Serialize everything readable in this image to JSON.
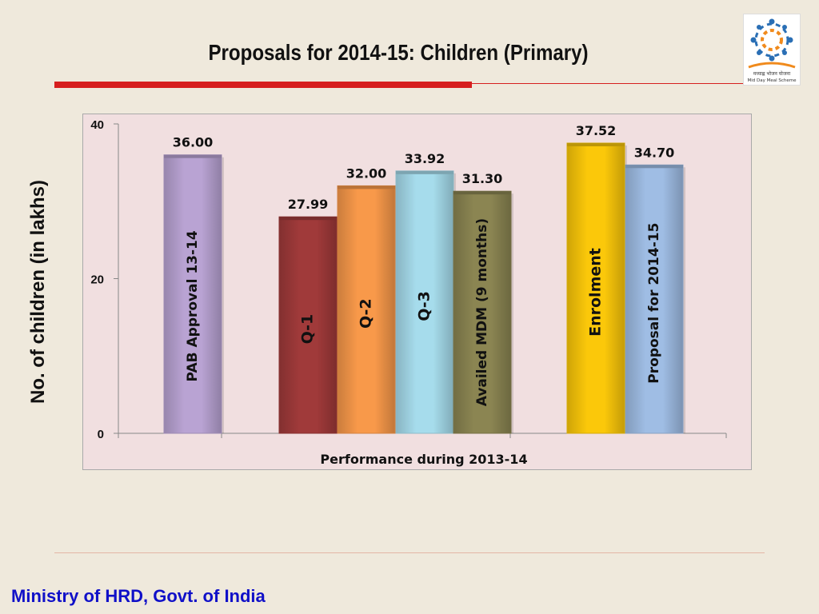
{
  "slide": {
    "title": "Proposals for 2014-15: Children (Primary)",
    "footer": "Ministry of HRD, Govt. of India"
  },
  "logo": {
    "caption": "मध्याह्न भोजन योजना",
    "subcaption": "Mid Day Meal Scheme"
  },
  "chart_data": {
    "type": "bar",
    "title": "Proposals for 2014-15: Children (Primary)",
    "xlabel": "Performance during 2013-14",
    "ylabel": "No. of children (in lakhs)",
    "ylim": [
      0,
      40
    ],
    "yticks": [
      "0",
      "20",
      "40"
    ],
    "grid": false,
    "legend": "none",
    "categories": [
      "PAB Approval 13-14",
      "Q-1",
      "Q-2",
      "Q-3",
      "Availed MDM (9 months)",
      "Enrolment",
      "Proposal for 2014-15"
    ],
    "values": [
      36.0,
      27.99,
      32.0,
      33.92,
      31.3,
      37.52,
      34.7
    ],
    "data_labels": [
      "36.00",
      "27.99",
      "32.00",
      "33.92",
      "31.30",
      "37.52",
      "34.70"
    ],
    "colors": [
      "#b9a3d3",
      "#a03a3a",
      "#f8994a",
      "#a6dcec",
      "#8b8552",
      "#fbc80a",
      "#9fbde4"
    ]
  }
}
